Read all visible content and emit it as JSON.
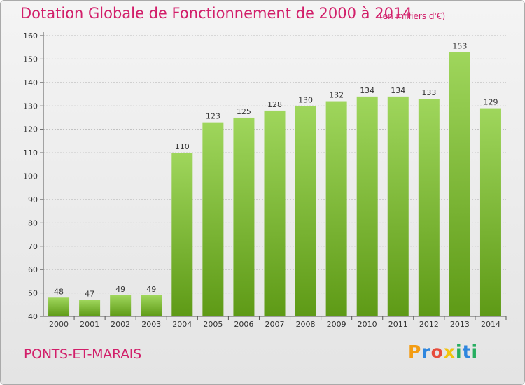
{
  "header": {
    "title": "Dotation Globale de Fonctionnement de 2000 à 2014",
    "unit": "(en milliers d'€)"
  },
  "footer": {
    "commune": "PONTS-ET-MARAIS",
    "logo": "Proxiti",
    "logo_letters": [
      "P",
      "r",
      "o",
      "x",
      "i",
      "t",
      "i"
    ],
    "logo_colors": [
      "#f39c12",
      "#2e86de",
      "#e74c3c",
      "#f1c40f",
      "#27ae60",
      "#2e86de",
      "#27ae60"
    ]
  },
  "colors": {
    "accent": "#d21f6a",
    "bar_top": "#9fd65c",
    "bar_bottom": "#5e9a16",
    "axis": "#555555",
    "grid": "#bbbbbb"
  },
  "chart_data": {
    "type": "bar",
    "title": "Dotation Globale de Fonctionnement de 2000 à 2014",
    "subtitle": "(en milliers d'€)",
    "xlabel": "",
    "ylabel": "",
    "categories": [
      "2000",
      "2001",
      "2002",
      "2003",
      "2004",
      "2005",
      "2006",
      "2007",
      "2008",
      "2009",
      "2010",
      "2011",
      "2012",
      "2013",
      "2014"
    ],
    "values": [
      48,
      47,
      49,
      49,
      110,
      123,
      125,
      128,
      130,
      132,
      134,
      134,
      133,
      153,
      129
    ],
    "ylim": [
      40,
      160
    ],
    "yticks": [
      40,
      50,
      60,
      70,
      80,
      90,
      100,
      110,
      120,
      130,
      140,
      150,
      160
    ],
    "grid": true,
    "legend": "none"
  }
}
